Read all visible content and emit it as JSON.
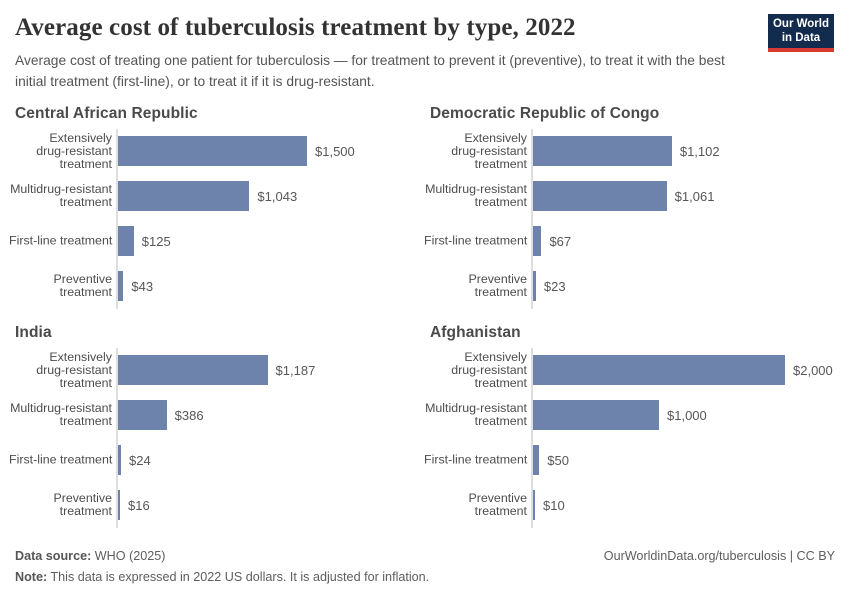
{
  "header": {
    "title": "Average cost of tuberculosis treatment by type, 2022",
    "subtitle": "Average cost of treating one patient for tuberculosis — for treatment to prevent it (preventive), to treat it with the best initial treatment (first-line), or to treat it if it is drug-resistant.",
    "logo": {
      "line1": "Our World",
      "line2": "in Data"
    }
  },
  "colors": {
    "bar": "#6d83ac",
    "logo_bg": "#132c4e",
    "logo_accent": "#d93a34",
    "axis": "#dedede"
  },
  "chart_data": {
    "type": "bar",
    "orientation": "horizontal",
    "grid": false,
    "legend": "none",
    "xlim": [
      0,
      2000
    ],
    "categories": [
      "Extensively drug-resistant treatment",
      "Multidrug-resistant treatment",
      "First-line treatment",
      "Preventive treatment"
    ],
    "category_display": [
      "Extensively\ndrug-resistant\ntreatment",
      "Multidrug-resistant\ntreatment",
      "First-line treatment",
      "Preventive\ntreatment"
    ],
    "panels": [
      {
        "title": "Central African Republic",
        "values": [
          1500,
          1043,
          125,
          43
        ],
        "value_labels": [
          "$1,500",
          "$1,043",
          "$125",
          "$43"
        ]
      },
      {
        "title": "Democratic Republic of Congo",
        "values": [
          1102,
          1061,
          67,
          23
        ],
        "value_labels": [
          "$1,102",
          "$1,061",
          "$67",
          "$23"
        ]
      },
      {
        "title": "India",
        "values": [
          1187,
          386,
          24,
          16
        ],
        "value_labels": [
          "$1,187",
          "$386",
          "$24",
          "$16"
        ]
      },
      {
        "title": "Afghanistan",
        "values": [
          2000,
          1000,
          50,
          10
        ],
        "value_labels": [
          "$2,000",
          "$1,000",
          "$50",
          "$10"
        ]
      }
    ]
  },
  "footer": {
    "data_source_label": "Data source:",
    "data_source_value": " WHO (2025)",
    "note_label": "Note:",
    "note_value": " This data is expressed in 2022 US dollars. It is adjusted for inflation.",
    "attribution": "OurWorldinData.org/tuberculosis | CC BY"
  }
}
